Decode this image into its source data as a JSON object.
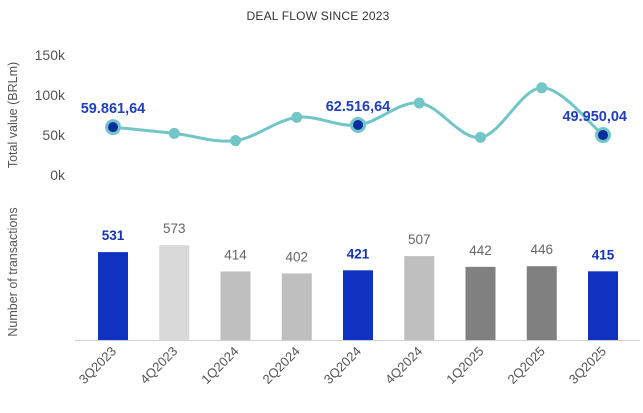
{
  "chart_data": {
    "title": "DEAL FLOW SINCE 2023",
    "categories": [
      "3Q2023",
      "4Q2023",
      "1Q2024",
      "2Q2024",
      "3Q2024",
      "4Q2024",
      "1Q2025",
      "2Q2025",
      "3Q2025"
    ],
    "charts": [
      {
        "type": "line",
        "ylabel": "Total value (BRLm)",
        "ylim": [
          0,
          150000
        ],
        "yticks": [
          "0k",
          "50k",
          "100k",
          "150k"
        ],
        "values": [
          59861.64,
          52000,
          43000,
          72000,
          62516.64,
          90000,
          47000,
          109000,
          49950.04
        ],
        "labels": [
          {
            "index": 0,
            "text": "59.861,64"
          },
          {
            "index": 4,
            "text": "62.516,64"
          },
          {
            "index": 8,
            "text": "49.950,04"
          }
        ],
        "highlight_points": [
          0,
          4,
          8
        ],
        "color": "#72c6c8",
        "highlight_color": "#0a2e9e"
      },
      {
        "type": "bar",
        "ylabel": "Number of transactions",
        "values": [
          531,
          573,
          414,
          402,
          421,
          507,
          442,
          446,
          415
        ],
        "labels": [
          "531",
          "573",
          "414",
          "402",
          "421",
          "507",
          "442",
          "446",
          "415"
        ],
        "colors": [
          "#0f32c0",
          "#d9d9d9",
          "#bfbfbf",
          "#bfbfbf",
          "#0f32c0",
          "#bfbfbf",
          "#808080",
          "#808080",
          "#0f32c0"
        ],
        "highlight": [
          0,
          4,
          8
        ]
      }
    ]
  }
}
